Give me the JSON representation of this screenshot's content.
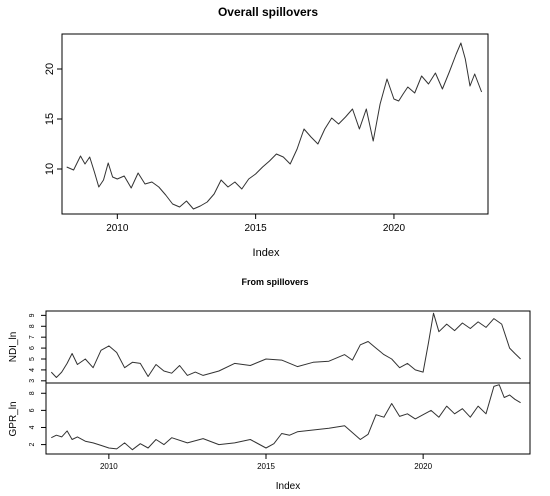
{
  "chart_data": [
    {
      "type": "line",
      "title": "Overall spillovers",
      "xlabel": "Index",
      "ylabel": "",
      "xlim": [
        2008.0,
        2023.4
      ],
      "ylim": [
        5.5,
        23.5
      ],
      "x_ticks": [
        "2010",
        "2015",
        "2020"
      ],
      "y_ticks": [
        "10",
        "15",
        "20"
      ],
      "series": [
        {
          "x": [
            2008.17,
            2008.42,
            2008.67,
            2008.83,
            2009.0,
            2009.17,
            2009.33,
            2009.5,
            2009.67,
            2009.83,
            2010.0,
            2010.25,
            2010.5,
            2010.75,
            2011.0,
            2011.25,
            2011.5,
            2011.75,
            2012.0,
            2012.25,
            2012.5,
            2012.75,
            2013.0,
            2013.25,
            2013.5,
            2013.75,
            2014.0,
            2014.25,
            2014.5,
            2014.75,
            2015.0,
            2015.25,
            2015.5,
            2015.75,
            2016.0,
            2016.25,
            2016.5,
            2016.75,
            2017.0,
            2017.25,
            2017.5,
            2017.75,
            2018.0,
            2018.25,
            2018.5,
            2018.75,
            2019.0,
            2019.25,
            2019.5,
            2019.75,
            2020.0,
            2020.17,
            2020.33,
            2020.5,
            2020.75,
            2021.0,
            2021.25,
            2021.5,
            2021.75,
            2022.0,
            2022.25,
            2022.42,
            2022.58,
            2022.75,
            2022.92,
            2023.17
          ],
          "values": [
            10.2,
            9.9,
            11.3,
            10.5,
            11.2,
            9.7,
            8.2,
            8.9,
            10.6,
            9.2,
            9.0,
            9.3,
            8.1,
            9.6,
            8.5,
            8.7,
            8.2,
            7.4,
            6.5,
            6.2,
            6.8,
            6.0,
            6.3,
            6.7,
            7.5,
            8.9,
            8.2,
            8.7,
            8.0,
            9.0,
            9.5,
            10.2,
            10.8,
            11.5,
            11.2,
            10.5,
            12.0,
            14.0,
            13.2,
            12.5,
            14.0,
            15.1,
            14.5,
            15.2,
            16.0,
            14.0,
            16.0,
            12.8,
            16.5,
            19.0,
            17.0,
            16.8,
            17.5,
            18.2,
            17.6,
            19.3,
            18.5,
            19.6,
            18.0,
            19.7,
            21.5,
            22.6,
            21.0,
            18.3,
            19.5,
            17.7
          ]
        }
      ]
    },
    {
      "type": "line",
      "title": "From spillovers",
      "xlabel": "Index",
      "xlim": [
        2008.0,
        2023.4
      ],
      "x_ticks": [
        "2010",
        "2015",
        "2020"
      ],
      "panels": [
        {
          "ylabel": "NDI_ln",
          "ylim": [
            2.8,
            9.4
          ],
          "y_ticks": [
            "3",
            "4",
            "5",
            "6",
            "7",
            "8",
            "9"
          ],
          "x": [
            2008.17,
            2008.33,
            2008.5,
            2008.67,
            2008.83,
            2009.0,
            2009.25,
            2009.5,
            2009.75,
            2010.0,
            2010.25,
            2010.5,
            2010.75,
            2011.0,
            2011.25,
            2011.5,
            2011.75,
            2012.0,
            2012.25,
            2012.5,
            2012.75,
            2013.0,
            2013.5,
            2014.0,
            2014.5,
            2015.0,
            2015.5,
            2016.0,
            2016.5,
            2017.0,
            2017.5,
            2017.75,
            2018.0,
            2018.25,
            2018.5,
            2018.75,
            2019.0,
            2019.25,
            2019.5,
            2019.75,
            2020.0,
            2020.17,
            2020.33,
            2020.5,
            2020.75,
            2021.0,
            2021.25,
            2021.5,
            2021.75,
            2022.0,
            2022.25,
            2022.5,
            2022.75,
            2022.92,
            2023.1
          ],
          "values": [
            3.8,
            3.3,
            3.8,
            4.6,
            5.5,
            4.5,
            5.0,
            4.2,
            5.8,
            6.2,
            5.6,
            4.2,
            4.7,
            4.6,
            3.4,
            4.5,
            3.9,
            3.7,
            4.4,
            3.5,
            3.8,
            3.5,
            3.9,
            4.6,
            4.4,
            5.0,
            4.9,
            4.3,
            4.7,
            4.8,
            5.4,
            4.9,
            6.3,
            6.6,
            6.0,
            5.4,
            5.0,
            4.2,
            4.6,
            4.0,
            3.8,
            6.5,
            9.2,
            7.5,
            8.2,
            7.6,
            8.3,
            7.8,
            8.4,
            7.9,
            8.7,
            8.2,
            6.0,
            5.5,
            5.0
          ]
        },
        {
          "ylabel": "GPR_ln",
          "ylim": [
            0.9,
            9.2
          ],
          "y_ticks": [
            "2",
            "4",
            "6",
            "8"
          ],
          "x": [
            2008.17,
            2008.33,
            2008.5,
            2008.67,
            2008.83,
            2009.0,
            2009.25,
            2009.5,
            2009.75,
            2010.0,
            2010.25,
            2010.5,
            2010.75,
            2011.0,
            2011.25,
            2011.5,
            2011.75,
            2012.0,
            2012.5,
            2013.0,
            2013.5,
            2014.0,
            2014.5,
            2015.0,
            2015.25,
            2015.5,
            2015.75,
            2016.0,
            2016.5,
            2017.0,
            2017.5,
            2018.0,
            2018.25,
            2018.5,
            2018.75,
            2019.0,
            2019.25,
            2019.5,
            2019.75,
            2020.0,
            2020.25,
            2020.5,
            2020.75,
            2021.0,
            2021.25,
            2021.5,
            2021.75,
            2022.0,
            2022.25,
            2022.42,
            2022.58,
            2022.75,
            2022.92,
            2023.1
          ],
          "values": [
            2.8,
            3.1,
            2.9,
            3.6,
            2.6,
            2.9,
            2.4,
            2.2,
            1.9,
            1.6,
            1.5,
            2.2,
            1.4,
            2.1,
            1.6,
            2.6,
            2.0,
            2.8,
            2.2,
            2.7,
            2.0,
            2.2,
            2.6,
            1.6,
            2.1,
            3.3,
            3.1,
            3.5,
            3.7,
            3.9,
            4.2,
            2.6,
            3.2,
            5.5,
            5.2,
            6.8,
            5.3,
            5.6,
            5.0,
            5.5,
            6.0,
            5.2,
            6.5,
            5.6,
            6.2,
            5.2,
            6.5,
            5.6,
            8.8,
            9.0,
            7.5,
            7.8,
            7.3,
            6.9
          ]
        }
      ]
    }
  ]
}
